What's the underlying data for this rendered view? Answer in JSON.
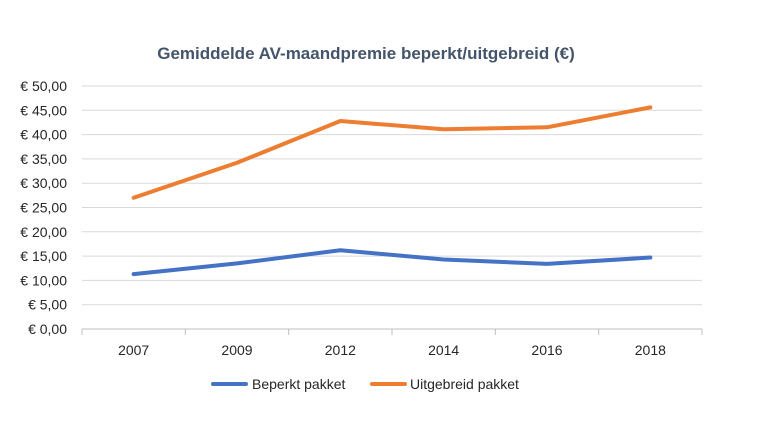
{
  "chart_data": {
    "type": "line",
    "title": "Gemiddelde AV-maandpremie beperkt/uitgebreid (€)",
    "xlabel": "",
    "ylabel": "",
    "categories": [
      "2007",
      "2009",
      "2012",
      "2014",
      "2016",
      "2018"
    ],
    "series": [
      {
        "name": "Beperkt pakket",
        "color": "#4472c4",
        "values": [
          11.3,
          13.5,
          16.2,
          14.3,
          13.4,
          14.7
        ]
      },
      {
        "name": "Uitgebreid pakket",
        "color": "#ed7d31",
        "values": [
          27.0,
          34.2,
          42.8,
          41.1,
          41.5,
          45.6
        ]
      }
    ],
    "ylim": [
      0,
      50
    ],
    "ytick_step": 5,
    "ytick_labels": [
      "€ 0,00",
      "€ 5,00",
      "€ 10,00",
      "€ 15,00",
      "€ 20,00",
      "€ 25,00",
      "€ 30,00",
      "€ 35,00",
      "€ 40,00",
      "€ 45,00",
      "€ 50,00"
    ],
    "grid": true,
    "legend_position": "bottom"
  }
}
